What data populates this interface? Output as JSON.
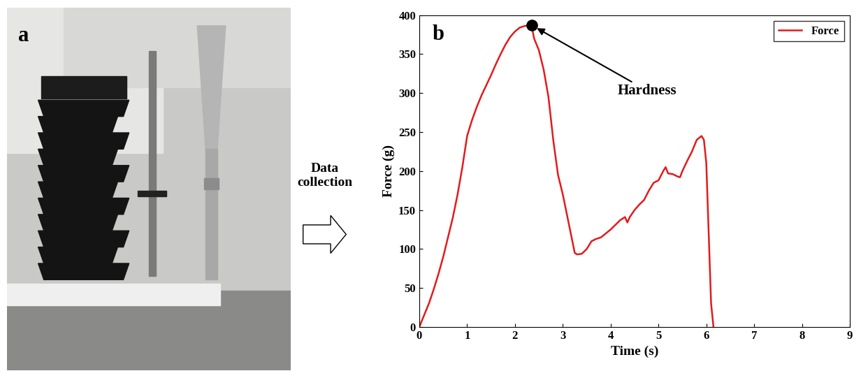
{
  "figure": {
    "panel_labels": [
      "a",
      "b"
    ],
    "arrow_text": "Data collection"
  },
  "chart_data": {
    "type": "line",
    "xlabel": "Time (s)",
    "ylabel": "Force (g)",
    "x": [
      0,
      0.1,
      0.2,
      0.3,
      0.4,
      0.5,
      0.6,
      0.7,
      0.8,
      0.9,
      1.0,
      1.1,
      1.2,
      1.3,
      1.4,
      1.5,
      1.6,
      1.7,
      1.8,
      1.9,
      2.0,
      2.1,
      2.2,
      2.3,
      2.35,
      2.4,
      2.5,
      2.6,
      2.7,
      2.8,
      2.9,
      3.0,
      3.1,
      3.2,
      3.25,
      3.3,
      3.4,
      3.5,
      3.6,
      3.7,
      3.8,
      4.0,
      4.2,
      4.3,
      4.35,
      4.4,
      4.5,
      4.6,
      4.7,
      4.8,
      4.9,
      5.0,
      5.1,
      5.15,
      5.2,
      5.3,
      5.4,
      5.45,
      5.5,
      5.6,
      5.7,
      5.8,
      5.9,
      5.95,
      6.0,
      6.05,
      6.1,
      6.15
    ],
    "series": [
      {
        "name": "Force",
        "color": "#e31a1c",
        "line_style": "solid",
        "values": [
          0,
          15,
          30,
          48,
          68,
          90,
          115,
          140,
          170,
          205,
          245,
          265,
          282,
          297,
          310,
          323,
          337,
          350,
          362,
          372,
          379,
          384,
          386,
          387,
          386,
          370,
          355,
          330,
          295,
          240,
          195,
          170,
          140,
          110,
          95,
          93,
          94,
          100,
          110,
          113,
          115,
          125,
          137,
          141,
          134,
          141,
          150,
          157,
          163,
          175,
          185,
          188,
          200,
          205,
          197,
          196,
          193,
          192,
          200,
          213,
          225,
          240,
          245,
          240,
          210,
          120,
          30,
          0
        ]
      }
    ],
    "annotations": [
      {
        "text": "Hardness",
        "x": 2.35,
        "y": 387
      }
    ],
    "xlim": [
      0,
      9
    ],
    "xticks": [
      0,
      1,
      2,
      3,
      4,
      5,
      6,
      7,
      8,
      9
    ],
    "ylim": [
      0,
      400
    ],
    "yticks": [
      0,
      50,
      100,
      150,
      200,
      250,
      300,
      350,
      400
    ],
    "legend": "upper right",
    "grid": false
  }
}
